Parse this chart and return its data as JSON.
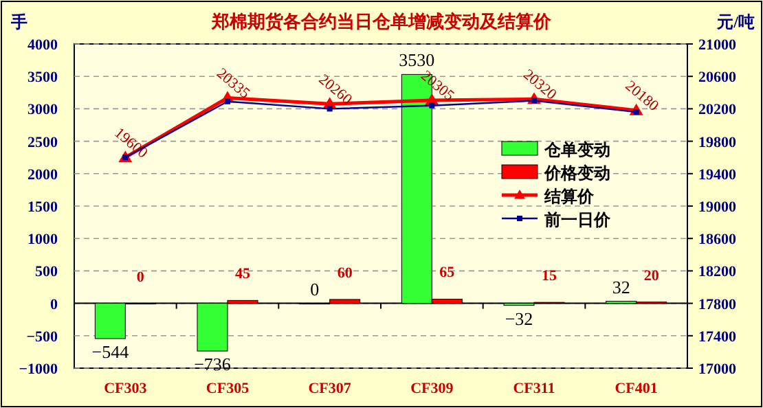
{
  "chart_data": {
    "type": "bar",
    "title": "郑棉期货各合约当日仓单增减变动及结算价",
    "ylabel": "手",
    "y2label": "元/吨",
    "categories": [
      "CF303",
      "CF305",
      "CF307",
      "CF309",
      "CF311",
      "CF401"
    ],
    "series": [
      {
        "name": "仓单变动",
        "color": "#33ff33",
        "values": [
          -544,
          -736,
          0,
          3530,
          -32,
          32
        ],
        "value_labels": [
          "−544",
          "−736",
          "0",
          "3530",
          "−32",
          "32"
        ]
      },
      {
        "name": "价格变动",
        "color": "#ff0000",
        "values": [
          0,
          45,
          60,
          65,
          15,
          20
        ],
        "value_labels": [
          "0",
          "45",
          "60",
          "65",
          "15",
          "20"
        ]
      },
      {
        "name": "结算价",
        "type": "line",
        "axis": "y2",
        "color": "#ff0000",
        "marker": "triangle",
        "values": [
          19600,
          20335,
          20260,
          20305,
          20320,
          20180
        ],
        "value_labels": [
          "19600",
          "20335",
          "20260",
          "20305",
          "20320",
          "20180"
        ]
      },
      {
        "name": "前一日价",
        "type": "line",
        "axis": "y2",
        "color": "#000099",
        "marker": "square",
        "values": [
          19600,
          20290,
          20200,
          20240,
          20300,
          20160
        ]
      }
    ],
    "ylim": [
      -1000,
      4000
    ],
    "yticks": [
      -1000,
      -500,
      0,
      500,
      1000,
      1500,
      2000,
      2500,
      3000,
      3500,
      4000
    ],
    "y2lim": [
      17000,
      21000
    ],
    "y2ticks": [
      17000,
      17400,
      17800,
      18200,
      18600,
      19000,
      19400,
      19800,
      20200,
      20600,
      21000
    ],
    "grid": "y",
    "legend": "right"
  }
}
